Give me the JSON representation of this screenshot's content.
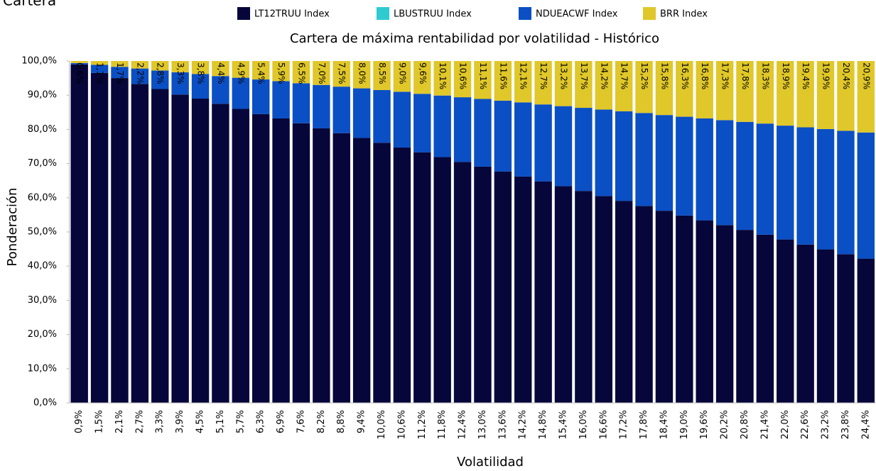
{
  "chart_data": {
    "type": "stacked-bar",
    "subtitle": "Cartera",
    "title": "Cartera de máxima rentabilidad por volatilidad - Histórico",
    "x_label": "Volatilidad",
    "y_label": "Ponderación",
    "categories": [
      "0,9%",
      "1,5%",
      "2,1%",
      "2,7%",
      "3,3%",
      "3,9%",
      "4,5%",
      "5,1%",
      "5,7%",
      "6,3%",
      "6,9%",
      "7,6%",
      "8,2%",
      "8,8%",
      "9,4%",
      "10,0%",
      "10,6%",
      "11,2%",
      "11,8%",
      "12,4%",
      "13,0%",
      "13,6%",
      "14,2%",
      "14,8%",
      "15,4%",
      "16,0%",
      "16,6%",
      "17,2%",
      "17,8%",
      "18,4%",
      "19,0%",
      "19,6%",
      "20,2%",
      "20,8%",
      "21,4%",
      "22,0%",
      "22,6%",
      "23,2%",
      "23,8%",
      "24,4%"
    ],
    "series": [
      {
        "name": "LT12TRUU Index",
        "color": "#06063a",
        "values": [
          99.0,
          96.5,
          95.0,
          93.3,
          91.8,
          90.2,
          89.0,
          87.5,
          86.0,
          84.5,
          83.2,
          81.8,
          80.3,
          78.9,
          77.5,
          76.1,
          74.7,
          73.3,
          71.9,
          70.5,
          69.1,
          67.7,
          66.2,
          64.8,
          63.4,
          62.0,
          60.5,
          59.1,
          57.6,
          56.2,
          54.8,
          53.4,
          52.0,
          50.6,
          49.2,
          47.8,
          46.3,
          44.9,
          43.5,
          42.2
        ]
      },
      {
        "name": "LBUSTRUU Index",
        "color": "#2ecbd1",
        "values": [
          0,
          0,
          0,
          0,
          0,
          0,
          0,
          0,
          0,
          0,
          0,
          0,
          0,
          0,
          0,
          0,
          0,
          0,
          0,
          0,
          0,
          0,
          0,
          0,
          0,
          0,
          0,
          0,
          0,
          0,
          0,
          0,
          0,
          0,
          0,
          0,
          0,
          0,
          0,
          0
        ]
      },
      {
        "name": "NDUEACWF Index",
        "color": "#0a4fc4",
        "values": [
          0.4,
          2.4,
          3.3,
          4.5,
          5.4,
          6.5,
          7.2,
          8.1,
          9.1,
          10.1,
          10.9,
          11.7,
          12.7,
          13.6,
          14.5,
          15.4,
          16.3,
          17.1,
          18.0,
          18.9,
          19.8,
          20.7,
          21.7,
          22.5,
          23.4,
          24.3,
          25.3,
          26.2,
          27.2,
          28.0,
          28.9,
          29.8,
          30.7,
          31.6,
          32.5,
          33.3,
          34.3,
          35.2,
          36.1,
          36.9
        ]
      },
      {
        "name": "BRR Index",
        "color": "#e0c72a",
        "values": [
          0.6,
          1.1,
          1.7,
          2.2,
          2.8,
          3.3,
          3.8,
          4.4,
          4.9,
          5.4,
          5.9,
          6.5,
          7.0,
          7.5,
          8.0,
          8.5,
          9.0,
          9.6,
          10.1,
          10.6,
          11.1,
          11.6,
          12.1,
          12.7,
          13.2,
          13.7,
          14.2,
          14.7,
          15.2,
          15.8,
          16.3,
          16.8,
          17.3,
          17.8,
          18.3,
          18.9,
          19.4,
          19.9,
          20.4,
          20.9
        ],
        "value_labels": [
          "0,6%",
          "1,1%",
          "1,7%",
          "2,2%",
          "2,8%",
          "3,3%",
          "3,8%",
          "4,4%",
          "4,9%",
          "5,4%",
          "5,9%",
          "6,5%",
          "7,0%",
          "7,5%",
          "8,0%",
          "8,5%",
          "9,0%",
          "9,6%",
          "10,1%",
          "10,6%",
          "11,1%",
          "11,6%",
          "12,1%",
          "12,7%",
          "13,2%",
          "13,7%",
          "14,2%",
          "14,7%",
          "15,2%",
          "15,8%",
          "16,3%",
          "16,8%",
          "17,3%",
          "17,8%",
          "18,3%",
          "18,9%",
          "19,4%",
          "19,9%",
          "20,4%",
          "20,9%"
        ]
      }
    ],
    "ylim": [
      0,
      100
    ],
    "yticks": [
      {
        "value": 0,
        "label": "0,0%"
      },
      {
        "value": 10,
        "label": "10,0%"
      },
      {
        "value": 20,
        "label": "20,0%"
      },
      {
        "value": 30,
        "label": "30,0%"
      },
      {
        "value": 40,
        "label": "40,0%"
      },
      {
        "value": 50,
        "label": "50,0%"
      },
      {
        "value": 60,
        "label": "60,0%"
      },
      {
        "value": 70,
        "label": "70,0%"
      },
      {
        "value": 80,
        "label": "80,0%"
      },
      {
        "value": 90,
        "label": "90,0%"
      },
      {
        "value": 100,
        "label": "100,0%"
      }
    ],
    "legend": "top"
  }
}
